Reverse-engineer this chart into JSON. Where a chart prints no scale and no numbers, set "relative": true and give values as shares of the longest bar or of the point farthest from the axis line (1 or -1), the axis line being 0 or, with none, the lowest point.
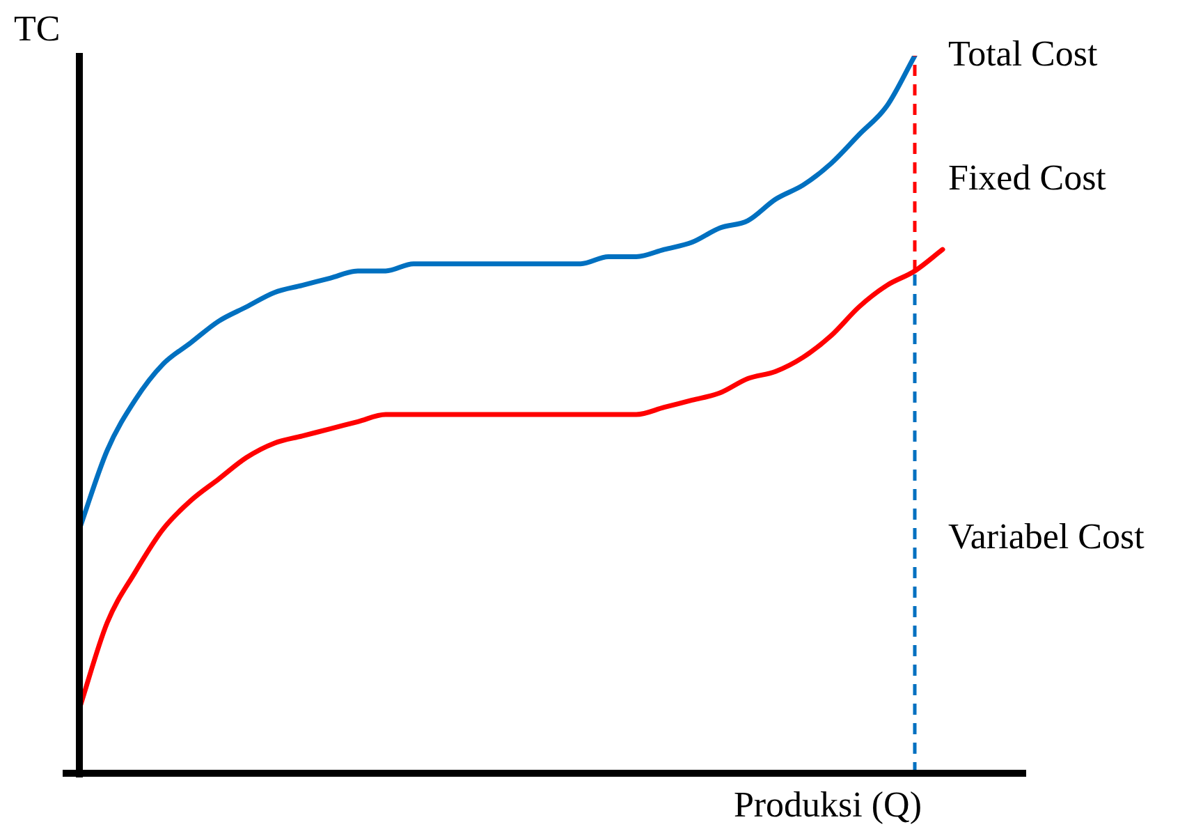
{
  "chart_data": {
    "type": "line",
    "relative": true,
    "ylabel": "TC",
    "xlabel": "Produksi (Q)",
    "legend": false,
    "marker": "none",
    "line_style": "solid",
    "categories": [
      null,
      null,
      null,
      null,
      null,
      null,
      null,
      null,
      null,
      null,
      null,
      null,
      null,
      null,
      null,
      null,
      null,
      null,
      null,
      null,
      null,
      null,
      null,
      null,
      null,
      null,
      null,
      null,
      null,
      null,
      null,
      null,
      null,
      null,
      null
    ],
    "series": [
      {
        "color": "#0070c0",
        "values": [
          0.34,
          0.45,
          0.52,
          0.57,
          0.6,
          0.63,
          0.65,
          0.67,
          0.68,
          0.69,
          0.7,
          0.7,
          0.71,
          0.71,
          0.71,
          0.71,
          0.71,
          0.71,
          0.71,
          0.72,
          0.72,
          0.73,
          0.74,
          0.76,
          0.77,
          0.8,
          0.82,
          0.85,
          0.89,
          0.93,
          1.0,
          null,
          null,
          null,
          null
        ]
      },
      {
        "color": "#ff0000",
        "values": [
          0.09,
          0.21,
          0.28,
          0.34,
          0.38,
          0.41,
          0.44,
          0.46,
          0.47,
          0.48,
          0.49,
          0.5,
          0.5,
          0.5,
          0.5,
          0.5,
          0.5,
          0.5,
          0.5,
          0.5,
          0.5,
          0.51,
          0.52,
          0.53,
          0.55,
          0.56,
          0.58,
          0.61,
          0.65,
          0.68,
          0.7,
          0.73,
          null,
          null,
          null
        ]
      }
    ],
    "annotations": [
      "Total Cost",
      "Fixed Cost",
      "Variabel Cost"
    ]
  }
}
